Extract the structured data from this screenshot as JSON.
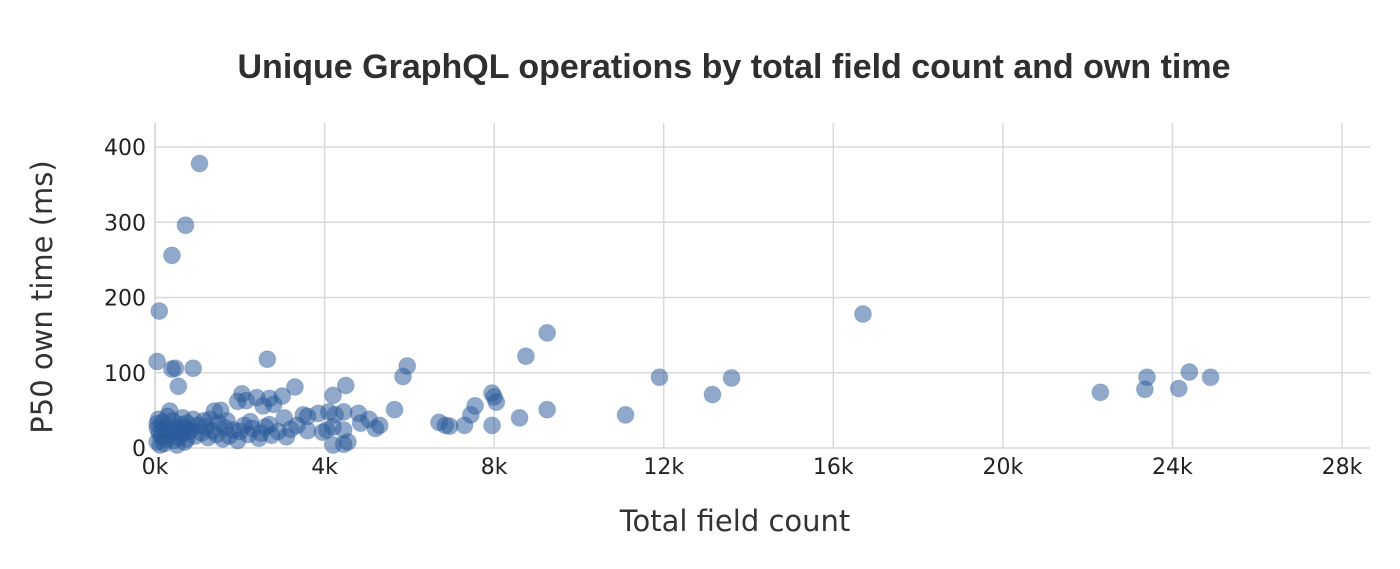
{
  "chart_data": {
    "type": "scatter",
    "title": "Unique GraphQL operations by total field count and own time",
    "xlabel": "Total field count",
    "ylabel": "P50 own time (ms)",
    "xlim": [
      0,
      28500
    ],
    "ylim": [
      0,
      430
    ],
    "x_ticks": [
      0,
      4000,
      8000,
      12000,
      16000,
      20000,
      24000,
      28000
    ],
    "x_tick_labels": [
      "0k",
      "4k",
      "8k",
      "12k",
      "16k",
      "20k",
      "24k",
      "28k"
    ],
    "y_ticks": [
      0,
      100,
      200,
      300,
      400
    ],
    "y_tick_labels": [
      "0",
      "100",
      "200",
      "300",
      "400"
    ],
    "grid": true,
    "legend": "none",
    "marker_color": "#2a5a99",
    "points": [
      {
        "x": 1050,
        "y": 378
      },
      {
        "x": 720,
        "y": 296
      },
      {
        "x": 400,
        "y": 256
      },
      {
        "x": 100,
        "y": 182
      },
      {
        "x": 16700,
        "y": 178
      },
      {
        "x": 9250,
        "y": 153
      },
      {
        "x": 8750,
        "y": 122
      },
      {
        "x": 2650,
        "y": 118
      },
      {
        "x": 50,
        "y": 115
      },
      {
        "x": 5950,
        "y": 109
      },
      {
        "x": 400,
        "y": 105
      },
      {
        "x": 480,
        "y": 106
      },
      {
        "x": 900,
        "y": 106
      },
      {
        "x": 24400,
        "y": 101
      },
      {
        "x": 5850,
        "y": 95
      },
      {
        "x": 23400,
        "y": 94
      },
      {
        "x": 11900,
        "y": 94
      },
      {
        "x": 13600,
        "y": 93
      },
      {
        "x": 24900,
        "y": 94
      },
      {
        "x": 550,
        "y": 82
      },
      {
        "x": 3300,
        "y": 81
      },
      {
        "x": 4500,
        "y": 83
      },
      {
        "x": 23350,
        "y": 78
      },
      {
        "x": 24150,
        "y": 79
      },
      {
        "x": 22300,
        "y": 74
      },
      {
        "x": 7950,
        "y": 73
      },
      {
        "x": 13150,
        "y": 71
      },
      {
        "x": 2050,
        "y": 72
      },
      {
        "x": 4200,
        "y": 70
      },
      {
        "x": 2400,
        "y": 67
      },
      {
        "x": 2700,
        "y": 66
      },
      {
        "x": 3000,
        "y": 69
      },
      {
        "x": 8000,
        "y": 68
      },
      {
        "x": 8050,
        "y": 61
      },
      {
        "x": 1950,
        "y": 62
      },
      {
        "x": 2150,
        "y": 63
      },
      {
        "x": 2800,
        "y": 58
      },
      {
        "x": 2550,
        "y": 56
      },
      {
        "x": 7550,
        "y": 56
      },
      {
        "x": 5650,
        "y": 51
      },
      {
        "x": 9250,
        "y": 51
      },
      {
        "x": 1550,
        "y": 50
      },
      {
        "x": 1400,
        "y": 49
      },
      {
        "x": 4100,
        "y": 48
      },
      {
        "x": 4450,
        "y": 48
      },
      {
        "x": 4800,
        "y": 46
      },
      {
        "x": 350,
        "y": 49
      },
      {
        "x": 3500,
        "y": 44
      },
      {
        "x": 3850,
        "y": 46
      },
      {
        "x": 4250,
        "y": 44
      },
      {
        "x": 7450,
        "y": 44
      },
      {
        "x": 11100,
        "y": 44
      },
      {
        "x": 3600,
        "y": 42
      },
      {
        "x": 5050,
        "y": 38
      },
      {
        "x": 8600,
        "y": 40
      },
      {
        "x": 3050,
        "y": 40
      },
      {
        "x": 6700,
        "y": 34
      },
      {
        "x": 6850,
        "y": 30
      },
      {
        "x": 6950,
        "y": 29
      },
      {
        "x": 7300,
        "y": 30
      },
      {
        "x": 7950,
        "y": 30
      },
      {
        "x": 4850,
        "y": 33
      },
      {
        "x": 5300,
        "y": 30
      },
      {
        "x": 5200,
        "y": 26
      },
      {
        "x": 4200,
        "y": 28
      },
      {
        "x": 4050,
        "y": 24
      },
      {
        "x": 4450,
        "y": 24
      },
      {
        "x": 3600,
        "y": 23
      },
      {
        "x": 3950,
        "y": 21
      },
      {
        "x": 3200,
        "y": 25
      },
      {
        "x": 2900,
        "y": 22
      },
      {
        "x": 2600,
        "y": 28
      },
      {
        "x": 2300,
        "y": 26
      },
      {
        "x": 2100,
        "y": 30
      },
      {
        "x": 1850,
        "y": 24
      },
      {
        "x": 1650,
        "y": 27
      },
      {
        "x": 1350,
        "y": 23
      },
      {
        "x": 1200,
        "y": 28
      },
      {
        "x": 1000,
        "y": 30
      },
      {
        "x": 850,
        "y": 24
      },
      {
        "x": 700,
        "y": 27
      },
      {
        "x": 600,
        "y": 31
      },
      {
        "x": 500,
        "y": 26
      },
      {
        "x": 400,
        "y": 22
      },
      {
        "x": 300,
        "y": 28
      },
      {
        "x": 200,
        "y": 24
      },
      {
        "x": 100,
        "y": 20
      },
      {
        "x": 50,
        "y": 32
      },
      {
        "x": 150,
        "y": 15
      },
      {
        "x": 250,
        "y": 12
      },
      {
        "x": 350,
        "y": 18
      },
      {
        "x": 450,
        "y": 10
      },
      {
        "x": 550,
        "y": 14
      },
      {
        "x": 650,
        "y": 19
      },
      {
        "x": 750,
        "y": 12
      },
      {
        "x": 800,
        "y": 22
      },
      {
        "x": 950,
        "y": 16
      },
      {
        "x": 1100,
        "y": 20
      },
      {
        "x": 1250,
        "y": 14
      },
      {
        "x": 1450,
        "y": 18
      },
      {
        "x": 1750,
        "y": 16
      },
      {
        "x": 1950,
        "y": 10
      },
      {
        "x": 2200,
        "y": 18
      },
      {
        "x": 2450,
        "y": 13
      },
      {
        "x": 2750,
        "y": 17
      },
      {
        "x": 3100,
        "y": 15
      },
      {
        "x": 2500,
        "y": 20
      },
      {
        "x": 2000,
        "y": 22
      },
      {
        "x": 1500,
        "y": 33
      },
      {
        "x": 1150,
        "y": 36
      },
      {
        "x": 900,
        "y": 38
      },
      {
        "x": 650,
        "y": 40
      },
      {
        "x": 300,
        "y": 42
      },
      {
        "x": 80,
        "y": 38
      },
      {
        "x": 50,
        "y": 8
      },
      {
        "x": 120,
        "y": 4
      },
      {
        "x": 220,
        "y": 6
      },
      {
        "x": 60,
        "y": 26
      },
      {
        "x": 180,
        "y": 34
      },
      {
        "x": 420,
        "y": 36
      },
      {
        "x": 760,
        "y": 33
      },
      {
        "x": 1300,
        "y": 38
      },
      {
        "x": 1700,
        "y": 36
      },
      {
        "x": 2250,
        "y": 35
      },
      {
        "x": 2700,
        "y": 31
      },
      {
        "x": 3350,
        "y": 30
      },
      {
        "x": 4450,
        "y": 5
      },
      {
        "x": 4550,
        "y": 8
      },
      {
        "x": 4200,
        "y": 4
      },
      {
        "x": 520,
        "y": 4
      },
      {
        "x": 700,
        "y": 8
      },
      {
        "x": 1600,
        "y": 12
      }
    ]
  }
}
